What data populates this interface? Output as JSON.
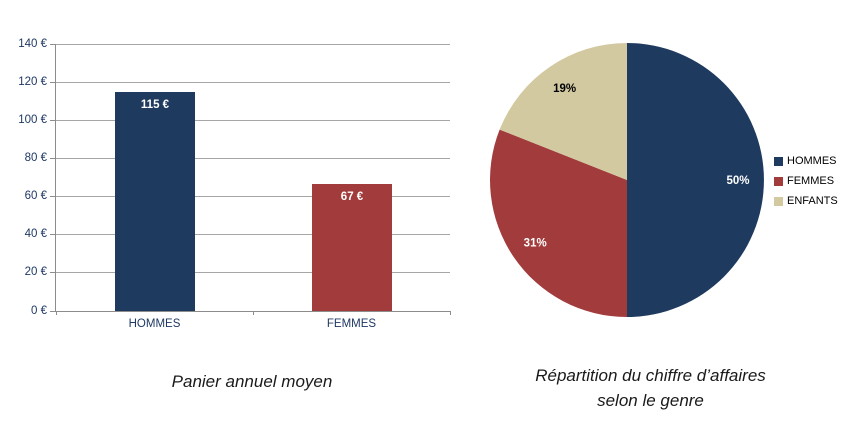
{
  "page": {
    "background": "#FFFFFF"
  },
  "colors": {
    "hommes": "#1F3A5F",
    "femmes": "#A23C3C",
    "enfants": "#D2C9A0",
    "gridline": "#A6A6A6",
    "axis": "#8C8C8C",
    "axis_text": "#1F3864"
  },
  "chart_data": [
    {
      "type": "bar",
      "title": "Panier annuel moyen",
      "categories": [
        "HOMMES",
        "FEMMES"
      ],
      "values": [
        115,
        67
      ],
      "value_labels": [
        "115 €",
        "67 €"
      ],
      "bar_colors": [
        "#1F3A5F",
        "#A23C3C"
      ],
      "ylim": [
        0,
        140
      ],
      "ytick_step": 20,
      "ytick_labels": [
        "0 €",
        "20 €",
        "40 €",
        "60 €",
        "80 €",
        "100 €",
        "120 €",
        "140 €"
      ],
      "ylabel": "",
      "xlabel": "",
      "grid": true,
      "legend": "none"
    },
    {
      "type": "pie",
      "title": "Répartition du chiffre d’affaires selon le genre",
      "title_lines": [
        "Répartition du chiffre d’affaires",
        "selon le genre"
      ],
      "start_angle_deg": 0,
      "direction": "clockwise",
      "legend_position": "right",
      "slices": [
        {
          "label": "HOMMES",
          "value": 50,
          "pct_label": "50%",
          "color": "#1F3A5F",
          "label_color": "#FFFFFF"
        },
        {
          "label": "FEMMES",
          "value": 31,
          "pct_label": "31%",
          "color": "#A23C3C",
          "label_color": "#FFFFFF"
        },
        {
          "label": "ENFANTS",
          "value": 19,
          "pct_label": "19%",
          "color": "#D2C9A0",
          "label_color": "#000000"
        }
      ]
    }
  ]
}
